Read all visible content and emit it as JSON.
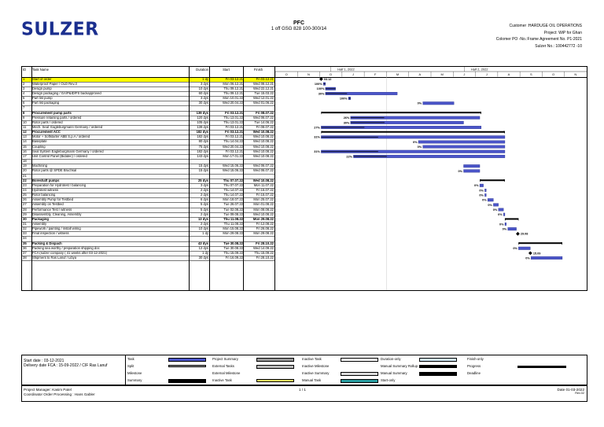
{
  "header": {
    "logo": "SULZER",
    "title_line1": "PFC",
    "title_line2": "1 off GSG 828 100-300/14",
    "customer": "Customer :HARDUGE OIL OPERATIONS",
    "project": "Project: WiP for Ghan",
    "agreement": "Colomer PO -No.:Frame Agreement No. P1-2021",
    "sulzer_no": "Sulzer No.: 100442772 -10"
  },
  "columns": {
    "id": "ID",
    "name": "Task Name",
    "duration": "Duration",
    "start": "Start",
    "finish": "Finish"
  },
  "timescale": {
    "half1": "Half 1, 2022",
    "half2": "Half 2, 2022",
    "months": [
      "O",
      "N",
      "D",
      "J",
      "F",
      "M",
      "A",
      "M",
      "J",
      "J",
      "A",
      "S",
      "O",
      "N"
    ]
  },
  "tasks": [
    {
      "id": "1",
      "name": "Start of order",
      "dur": "1 dy",
      "start": "Fri 03.12.21",
      "finish": "Fri 03.12.21",
      "bold": false,
      "hl": true
    },
    {
      "id": "2",
      "name": "Waterproof Paper / OLD Rev.3",
      "dur": "3 dys",
      "start": "Mon 06.12.21",
      "finish": "Wed 08.12.21",
      "bold": false
    },
    {
      "id": "3",
      "name": "Design pump",
      "dur": "10 dys",
      "start": "Thu 09.12.21",
      "finish": "Wed 22.12.21",
      "bold": false
    },
    {
      "id": "4",
      "name": "Design packaging / GA/P&ID/FS backapproved",
      "dur": "60 dys",
      "start": "Thu 09.12.21",
      "finish": "Tue 15.03.22",
      "bold": false
    },
    {
      "id": "5",
      "name": "Part list pump",
      "dur": "3 dys",
      "start": "Mon 10.01.22",
      "finish": "Wed 12.01.22",
      "bold": false
    },
    {
      "id": "6",
      "name": "Part list packaging",
      "dur": "30 dys",
      "start": "Wed 20.04.22",
      "finish": "Wed 01.06.22",
      "bold": false
    },
    {
      "id": "7",
      "name": "",
      "dur": "",
      "start": "",
      "finish": "",
      "bold": false
    },
    {
      "id": "8",
      "name": "Procurement pump parts",
      "dur": "139 dys",
      "start": "Fri 03.12.21",
      "finish": "Fri 08.07.22",
      "bold": true
    },
    {
      "id": "9",
      "name": "Pressure retaining parts / ordered",
      "dur": "120 dys",
      "start": "Thu 13.01.22",
      "finish": "Wed 06.07.22",
      "bold": false
    },
    {
      "id": "10",
      "name": "Rotor parts / ordered",
      "dur": "105 dys",
      "start": "Thu 13.01.22",
      "finish": "Tue 14.06.22",
      "bold": false
    },
    {
      "id": "11",
      "name": "Mech. Seal: Eagleburgmann Germany / ordered",
      "dur": "139 dys",
      "start": "Fri 03.12.21",
      "finish": "Fri 08.07.22",
      "bold": false
    },
    {
      "id": "12",
      "name": "Procurement ACC",
      "dur": "182 dys",
      "start": "Fri 03.12.21",
      "finish": "Wed 10.08.22",
      "bold": true
    },
    {
      "id": "13",
      "name": "Motor + Softstarter ABB S.p.A / ordered",
      "dur": "182 dys",
      "start": "Fri 03.12.21",
      "finish": "Wed 10.08.22",
      "bold": false
    },
    {
      "id": "14",
      "name": "Baseplate",
      "dur": "80 dys",
      "start": "Thu 14.04.22",
      "finish": "Wed 10.08.22",
      "bold": false
    },
    {
      "id": "15",
      "name": "Coupling",
      "dur": "75 dys",
      "start": "Wed 20.04.22",
      "finish": "Wed 10.08.22",
      "bold": false
    },
    {
      "id": "16",
      "name": "Seal System Eagleburgmann Germany / ordered",
      "dur": "182 dys",
      "start": "Fri 03.12.21",
      "finish": "Wed 10.08.22",
      "bold": false
    },
    {
      "id": "17",
      "name": "Unit Control Panel (Bidatec) / ordered",
      "dur": "143 dys",
      "start": "Mon 17.01.22",
      "finish": "Wed 10.08.22",
      "bold": false
    },
    {
      "id": "18",
      "name": "",
      "dur": "",
      "start": "",
      "finish": "",
      "bold": false
    },
    {
      "id": "19",
      "name": "Machining",
      "dur": "15 dys",
      "start": "Wed 15.06.22",
      "finish": "Wed 06.07.22",
      "bold": false
    },
    {
      "id": "20",
      "name": "Rotor parts @ SPDE Bruchsal",
      "dur": "15 dys",
      "start": "Wed 15.06.22",
      "finish": "Wed 06.07.22",
      "bold": false
    },
    {
      "id": "21",
      "name": "",
      "dur": "",
      "start": "",
      "finish": "",
      "bold": false
    },
    {
      "id": "22",
      "name": "Boreshaft pumps",
      "dur": "25 dys",
      "start": "Thu 07.07.22",
      "finish": "Wed 10.08.22",
      "bold": true
    },
    {
      "id": "23",
      "name": "Preparation for Hydrotest / balancing",
      "dur": "3 dys",
      "start": "Thu 07.07.22",
      "finish": "Mon 11.07.22",
      "bold": false
    },
    {
      "id": "24",
      "name": "Hydrotest witness",
      "dur": "2 dys",
      "start": "Thu 14.07.22",
      "finish": "Fri 15.07.22",
      "bold": false
    },
    {
      "id": "25",
      "name": "Rotor balancing",
      "dur": "2 dys",
      "start": "Thu 14.07.22",
      "finish": "Fri 15.07.22",
      "bold": false
    },
    {
      "id": "26",
      "name": "Assembly Pump for Testbed",
      "dur": "6 dys",
      "start": "Mon 18.07.22",
      "finish": "Mon 25.07.22",
      "bold": false
    },
    {
      "id": "27",
      "name": "Assembly on Testbed",
      "dur": "5 dys",
      "start": "Tue 26.07.22",
      "finish": "Mon 01.08.22",
      "bold": false
    },
    {
      "id": "28",
      "name": "Performance Test / witness",
      "dur": "5 dys",
      "start": "Tue 02.08.22",
      "finish": "Mon 08.08.22",
      "bold": false
    },
    {
      "id": "29",
      "name": "Disassembly, Cleaning, Assembly",
      "dur": "2 dys",
      "start": "Tue 09.08.22",
      "finish": "Wed 10.08.22",
      "bold": false
    },
    {
      "id": "30",
      "name": "Packaging",
      "dur": "13 dys",
      "start": "Thu 11.08.22",
      "finish": "Mon 29.08.22",
      "bold": true
    },
    {
      "id": "31",
      "name": "Assembly",
      "dur": "2 dys",
      "start": "Thu 11.08.22",
      "finish": "Fri 12.08.22",
      "bold": false
    },
    {
      "id": "32",
      "name": "Pipework / painting / install wiring",
      "dur": "10 dys",
      "start": "Mon 15.08.22",
      "finish": "Fri 26.08.22",
      "bold": false
    },
    {
      "id": "33",
      "name": "Final inspection / witness",
      "dur": "1 dy",
      "start": "Mon 29.08.22",
      "finish": "Mon 29.08.22",
      "bold": false
    },
    {
      "id": "34",
      "name": "",
      "dur": "",
      "start": "",
      "finish": "",
      "bold": false
    },
    {
      "id": "35",
      "name": "Packing & Dispach",
      "dur": "43 dys",
      "start": "Tue 30.08.22",
      "finish": "Fri 28.10.22",
      "bold": true
    },
    {
      "id": "36",
      "name": "Packing sea worthy / preparation shipping doc",
      "dur": "12 dys",
      "start": "Tue 30.08.22",
      "finish": "Wed 14.09.22",
      "bold": false
    },
    {
      "id": "37",
      "name": "FCA (sulzer company ( 41 weeks after 03-12-2021)",
      "dur": "1 dy",
      "start": "Thu 15.09.22",
      "finish": "Thu 15.09.22",
      "bold": false
    },
    {
      "id": "38",
      "name": "Shipment to Ras Lanuf / Libya",
      "dur": "30 dys",
      "start": "Fri 16.09.22",
      "finish": "Fri 28.10.22",
      "bold": false
    }
  ],
  "gantt_labels": {
    "r1": "03.12",
    "r2": "100%",
    "r3": "100%",
    "r4": "30%",
    "r5": "100%",
    "r6": "0%",
    "r9": "26%",
    "r10": "30%",
    "r11": "27%",
    "r13": "31%",
    "r14": "0%",
    "r15": "0%",
    "r16": "31%",
    "r17": "22%",
    "r20": "0%",
    "r23": "0%",
    "r24": "0%",
    "r25": "0%",
    "r26": "0%",
    "r27": "0%",
    "r28": "0%",
    "r29": "0%",
    "r31": "0%",
    "r32": "0%",
    "r33": "29.08",
    "r36": "0%",
    "r37": "15.09",
    "r38": "0%"
  },
  "legend": {
    "date_start": "Start date  :  03-12-2021",
    "date_delivery": "Delivery date FCA  :  15-09-2022  / CIF Ras Lanuf",
    "items": [
      "Task",
      "Split",
      "Milestone",
      "Summary",
      "Project Summary",
      "External Tasks",
      "External Milestone",
      "Inactive Task",
      "Inactive Task",
      "Inactive Milestone",
      "Inactive Summary",
      "Manual Task",
      "Duration-only",
      "Manual Summary Rollup",
      "Manual Summary",
      "Start-only",
      "Finish-only",
      "Progress",
      "Deadline"
    ]
  },
  "footer": {
    "pm": "Project Manager: Kasim Patel",
    "coord": "Coordinator Order Processing : Hans Gabler",
    "page": "1 / 1",
    "date": "Date 01-03-2022",
    "rev": "Rev.02"
  },
  "colors": {
    "logo": "#1b2f8f",
    "task": "#4b55c8",
    "highlight": "#ffff00",
    "summary": "#000000"
  }
}
